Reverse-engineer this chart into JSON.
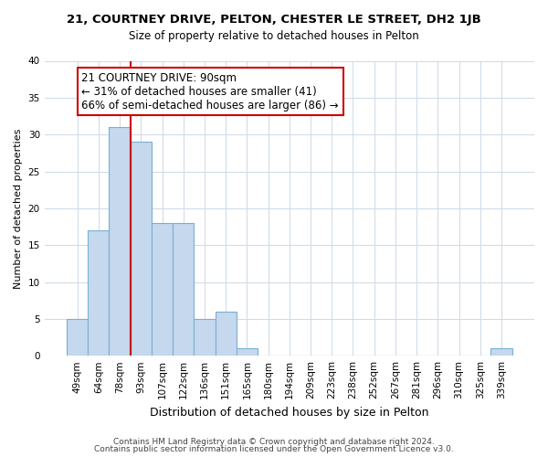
{
  "title": "21, COURTNEY DRIVE, PELTON, CHESTER LE STREET, DH2 1JB",
  "subtitle": "Size of property relative to detached houses in Pelton",
  "xlabel": "Distribution of detached houses by size in Pelton",
  "ylabel": "Number of detached properties",
  "bar_labels": [
    "49sqm",
    "64sqm",
    "78sqm",
    "93sqm",
    "107sqm",
    "122sqm",
    "136sqm",
    "151sqm",
    "165sqm",
    "180sqm",
    "194sqm",
    "209sqm",
    "223sqm",
    "238sqm",
    "252sqm",
    "267sqm",
    "281sqm",
    "296sqm",
    "310sqm",
    "325sqm",
    "339sqm"
  ],
  "bar_values": [
    5,
    17,
    31,
    29,
    18,
    18,
    5,
    6,
    1,
    0,
    0,
    0,
    0,
    0,
    0,
    0,
    0,
    0,
    0,
    0,
    1
  ],
  "bar_color": "#c5d8ed",
  "bar_edge_color": "#7aafd4",
  "vline_x_idx": 2.5,
  "vline_color": "#cc0000",
  "annotation_text": "21 COURTNEY DRIVE: 90sqm\n← 31% of detached houses are smaller (41)\n66% of semi-detached houses are larger (86) →",
  "annotation_box_color": "#ffffff",
  "annotation_box_edge": "#cc0000",
  "ylim": [
    0,
    40
  ],
  "yticks": [
    0,
    5,
    10,
    15,
    20,
    25,
    30,
    35,
    40
  ],
  "footer_line1": "Contains HM Land Registry data © Crown copyright and database right 2024.",
  "footer_line2": "Contains public sector information licensed under the Open Government Licence v3.0.",
  "background_color": "#ffffff",
  "grid_color": "#d0dce8",
  "title_fontsize": 9.5,
  "subtitle_fontsize": 8.5,
  "ylabel_fontsize": 8,
  "xlabel_fontsize": 9,
  "tick_fontsize": 7.5,
  "footer_fontsize": 6.5,
  "annotation_fontsize": 8.5
}
